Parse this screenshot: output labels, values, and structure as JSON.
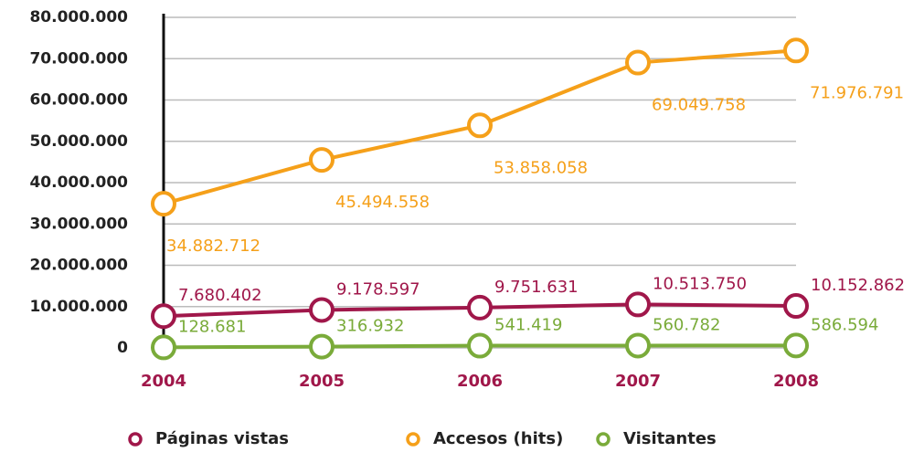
{
  "chart_data": {
    "type": "line",
    "categories": [
      "2004",
      "2005",
      "2006",
      "2007",
      "2008"
    ],
    "series": [
      {
        "name": "Páginas vistas",
        "color": "#a0174a",
        "values": [
          7680402,
          9178597,
          9751631,
          10513750,
          10152862
        ],
        "value_labels": [
          "7.680.402",
          "9.178.597",
          "9.751.631",
          "10.513.750",
          "10.152.862"
        ]
      },
      {
        "name": "Accesos (hits)",
        "color": "#f5a01a",
        "values": [
          34882712,
          45494558,
          53858058,
          69049758,
          71976791
        ],
        "value_labels": [
          "34.882.712",
          "45.494.558",
          "53.858.058",
          "69.049.758",
          "71.976.791"
        ]
      },
      {
        "name": "Visitantes",
        "color": "#7aab3a",
        "values": [
          128681,
          316932,
          541419,
          560782,
          586594
        ],
        "value_labels": [
          "128.681",
          "316.932",
          "541.419",
          "560.782",
          "586.594"
        ]
      }
    ],
    "ylim": [
      0,
      80000000
    ],
    "yticks": [
      0,
      {
        "value": 10000000,
        "label": "10.000.000"
      },
      {
        "value": 20000000,
        "label": "20.000.000"
      },
      {
        "value": 30000000,
        "label": "30.000.000"
      },
      {
        "value": 40000000,
        "label": "40.000.000"
      },
      {
        "value": 50000000,
        "label": "50.000.000"
      },
      {
        "value": 60000000,
        "label": "60.000.000"
      },
      {
        "value": 70000000,
        "label": "70.000.000"
      },
      {
        "value": 80000000,
        "label": "80.000.000"
      }
    ],
    "grid": true,
    "legend": "bottom"
  }
}
